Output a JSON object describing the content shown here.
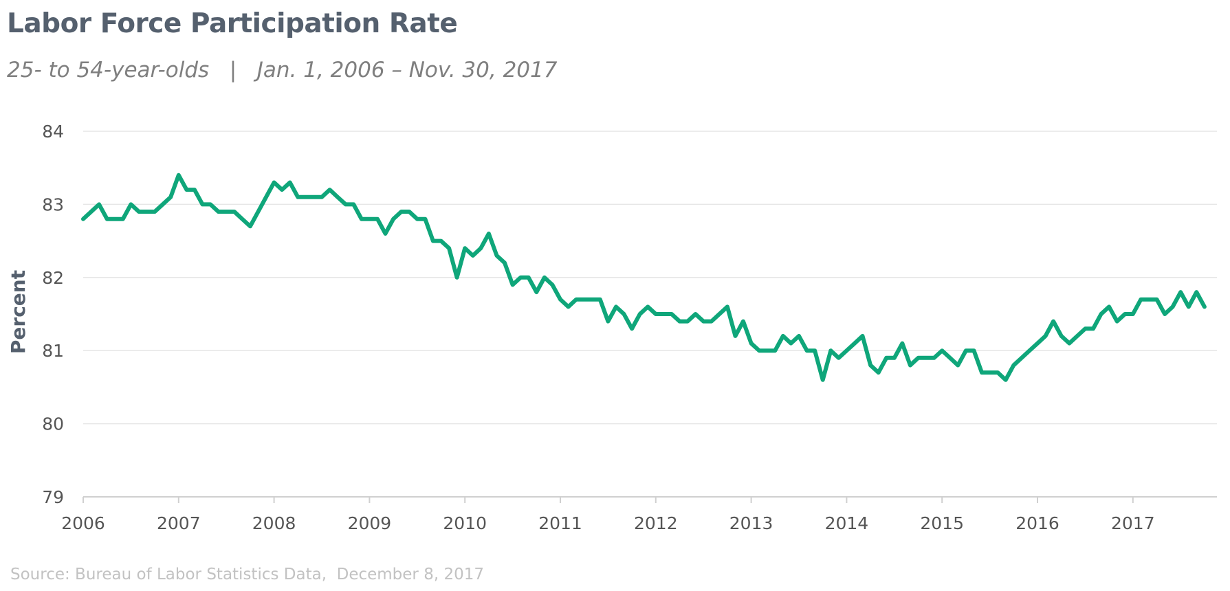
{
  "chart_data": {
    "type": "line",
    "title": "Labor Force Participation Rate",
    "subtitle": "25- to 54-year-olds   |   Jan. 1, 2006 – Nov. 30, 2017",
    "xlabel": "",
    "ylabel": "Percent",
    "source": "Source: Bureau of Labor Statistics Data,  December 8, 2017",
    "ylim": [
      79,
      84
    ],
    "xlim": [
      "2006-01",
      "2017-12"
    ],
    "yticks": [
      84,
      83,
      82,
      81,
      80,
      79
    ],
    "xticks": [
      "2006",
      "2007",
      "2008",
      "2009",
      "2010",
      "2011",
      "2012",
      "2013",
      "2014",
      "2015",
      "2016",
      "2017"
    ],
    "grid": true,
    "colors": {
      "line": "#0fa67a",
      "grid": "#e6e6e6",
      "axis": "#d0d0d0"
    },
    "series": [
      {
        "name": "",
        "start": "2006-01",
        "frequency": "monthly",
        "values": [
          82.8,
          82.9,
          83.0,
          82.8,
          82.8,
          82.8,
          83.0,
          82.9,
          82.9,
          82.9,
          83.0,
          83.1,
          83.4,
          83.2,
          83.2,
          83.0,
          83.0,
          82.9,
          82.9,
          82.9,
          82.8,
          82.7,
          82.9,
          83.1,
          83.3,
          83.2,
          83.3,
          83.1,
          83.1,
          83.1,
          83.1,
          83.2,
          83.1,
          83.0,
          83.0,
          82.8,
          82.8,
          82.8,
          82.6,
          82.8,
          82.9,
          82.9,
          82.8,
          82.8,
          82.5,
          82.5,
          82.4,
          82.0,
          82.4,
          82.3,
          82.4,
          82.6,
          82.3,
          82.2,
          81.9,
          82.0,
          82.0,
          81.8,
          82.0,
          81.9,
          81.7,
          81.6,
          81.7,
          81.7,
          81.7,
          81.7,
          81.4,
          81.6,
          81.5,
          81.3,
          81.5,
          81.6,
          81.5,
          81.5,
          81.5,
          81.4,
          81.4,
          81.5,
          81.4,
          81.4,
          81.5,
          81.6,
          81.2,
          81.4,
          81.1,
          81.0,
          81.0,
          81.0,
          81.2,
          81.1,
          81.2,
          81.0,
          81.0,
          80.6,
          81.0,
          80.9,
          81.0,
          81.1,
          81.2,
          80.8,
          80.7,
          80.9,
          80.9,
          81.1,
          80.8,
          80.9,
          80.9,
          80.9,
          81.0,
          80.9,
          80.8,
          81.0,
          81.0,
          80.7,
          80.7,
          80.7,
          80.6,
          80.8,
          80.9,
          81.0,
          81.1,
          81.2,
          81.4,
          81.2,
          81.1,
          81.2,
          81.3,
          81.3,
          81.5,
          81.6,
          81.4,
          81.5,
          81.5,
          81.7,
          81.7,
          81.7,
          81.5,
          81.6,
          81.8,
          81.6,
          81.8,
          81.6
        ]
      }
    ]
  }
}
